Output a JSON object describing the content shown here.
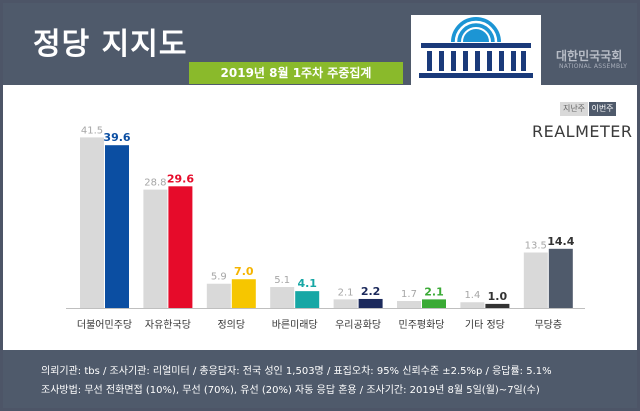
{
  "header": {
    "title": "정당 지지도",
    "subtitle": "2019년 8월 1주차 주중집계",
    "institution_ko": "대한민국국회",
    "institution_en": "NATIONAL ASSEMBLY"
  },
  "legend": {
    "previous": "지난주",
    "current": "이번주"
  },
  "brand": "REALMETER",
  "footer": {
    "line1": "의뢰기관:  tbs  /  조사기관:  리얼미터  /  총응답자:  전국 성인 1,503명  /  표집오차:  95% 신뢰수준 ±2.5%p  /  응답률:  5.1%",
    "line2": "조사방법:  무선 전화면접 (10%),  무선 (70%),  유선 (20%)  자동 응답 혼용  /  조사기간:  2019년 8월 5일(월)~7일(수)"
  },
  "colors": {
    "previous": "#d9d9d9",
    "header": "#4f5a6b",
    "accent": "#8aba2b"
  },
  "chart_data": {
    "type": "bar",
    "title": "정당 지지도",
    "subtitle": "2019년 8월 1주차 주중집계",
    "categories": [
      "더불어민주당",
      "자유한국당",
      "정의당",
      "바른미래당",
      "우리공화당",
      "민주평화당",
      "기타 정당",
      "무당층"
    ],
    "series": [
      {
        "name": "지난주",
        "values": [
          41.5,
          28.8,
          5.9,
          5.1,
          2.1,
          1.7,
          1.4,
          13.5
        ]
      },
      {
        "name": "이번주",
        "values": [
          39.6,
          29.6,
          7.0,
          4.1,
          2.2,
          2.1,
          1.0,
          14.4
        ]
      }
    ],
    "current_bar_colors": [
      "#0b4ea2",
      "#e60b2a",
      "#f6c600",
      "#17a7a5",
      "#1c2a5c",
      "#3aaa35",
      "#333333",
      "#4f5a6b"
    ],
    "current_label_colors": [
      "#0b4ea2",
      "#e60b2a",
      "#f5b400",
      "#17a7a5",
      "#1c2a5c",
      "#3aaa35",
      "#333333",
      "#333333"
    ],
    "ylim": [
      0,
      45
    ],
    "grid": false,
    "legend_position": "top-right"
  }
}
